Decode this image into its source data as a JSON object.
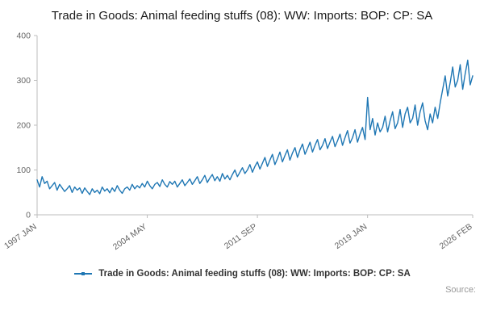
{
  "title": "Trade in Goods: Animal feeding stuffs (08): WW: Imports: BOP: CP: SA",
  "legend": {
    "label": "Trade in Goods: Animal feeding stuffs (08): WW: Imports: BOP: CP: SA"
  },
  "source_label": "Source:",
  "colors": {
    "line": "#1f77b4",
    "axis": "#bdbdbd",
    "tick_text": "#666666"
  },
  "chart_data": {
    "type": "line",
    "title": "Trade in Goods: Animal feeding stuffs (08): WW: Imports: BOP: CP: SA",
    "xlabel": "",
    "ylabel": "",
    "x_start": "1997 JAN",
    "x_end": "2026 FEB",
    "sampling": "bimonthly",
    "x_tick_labels": [
      "1997 JAN",
      "2004 MAY",
      "2011 SEP",
      "2019 JAN",
      "2026 FEB"
    ],
    "x_tick_positions": [
      0,
      44,
      88,
      132,
      174
    ],
    "y_ticks": [
      0,
      100,
      200,
      300,
      400
    ],
    "ylim": [
      0,
      400
    ],
    "legend_position": "bottom",
    "grid": false,
    "values": [
      78,
      62,
      85,
      70,
      75,
      58,
      65,
      72,
      55,
      68,
      60,
      52,
      58,
      65,
      50,
      62,
      55,
      60,
      48,
      60,
      52,
      45,
      58,
      50,
      55,
      47,
      62,
      53,
      58,
      49,
      60,
      52,
      65,
      55,
      48,
      58,
      62,
      55,
      68,
      58,
      65,
      60,
      70,
      62,
      75,
      65,
      58,
      68,
      72,
      63,
      78,
      68,
      62,
      74,
      68,
      75,
      62,
      70,
      78,
      65,
      72,
      80,
      68,
      76,
      85,
      70,
      78,
      88,
      72,
      82,
      90,
      76,
      85,
      75,
      92,
      80,
      88,
      78,
      90,
      100,
      85,
      95,
      105,
      92,
      100,
      112,
      95,
      108,
      118,
      102,
      115,
      128,
      108,
      122,
      135,
      112,
      125,
      140,
      118,
      132,
      145,
      122,
      138,
      150,
      128,
      145,
      158,
      135,
      148,
      162,
      140,
      155,
      168,
      145,
      155,
      170,
      148,
      162,
      175,
      152,
      165,
      180,
      155,
      172,
      188,
      160,
      172,
      190,
      162,
      180,
      195,
      168,
      262,
      190,
      215,
      178,
      205,
      185,
      195,
      220,
      185,
      210,
      230,
      192,
      205,
      235,
      195,
      225,
      240,
      205,
      215,
      245,
      200,
      230,
      250,
      210,
      190,
      225,
      205,
      240,
      215,
      250,
      280,
      310,
      265,
      295,
      330,
      285,
      300,
      335,
      280,
      315,
      345,
      290,
      310
    ]
  }
}
